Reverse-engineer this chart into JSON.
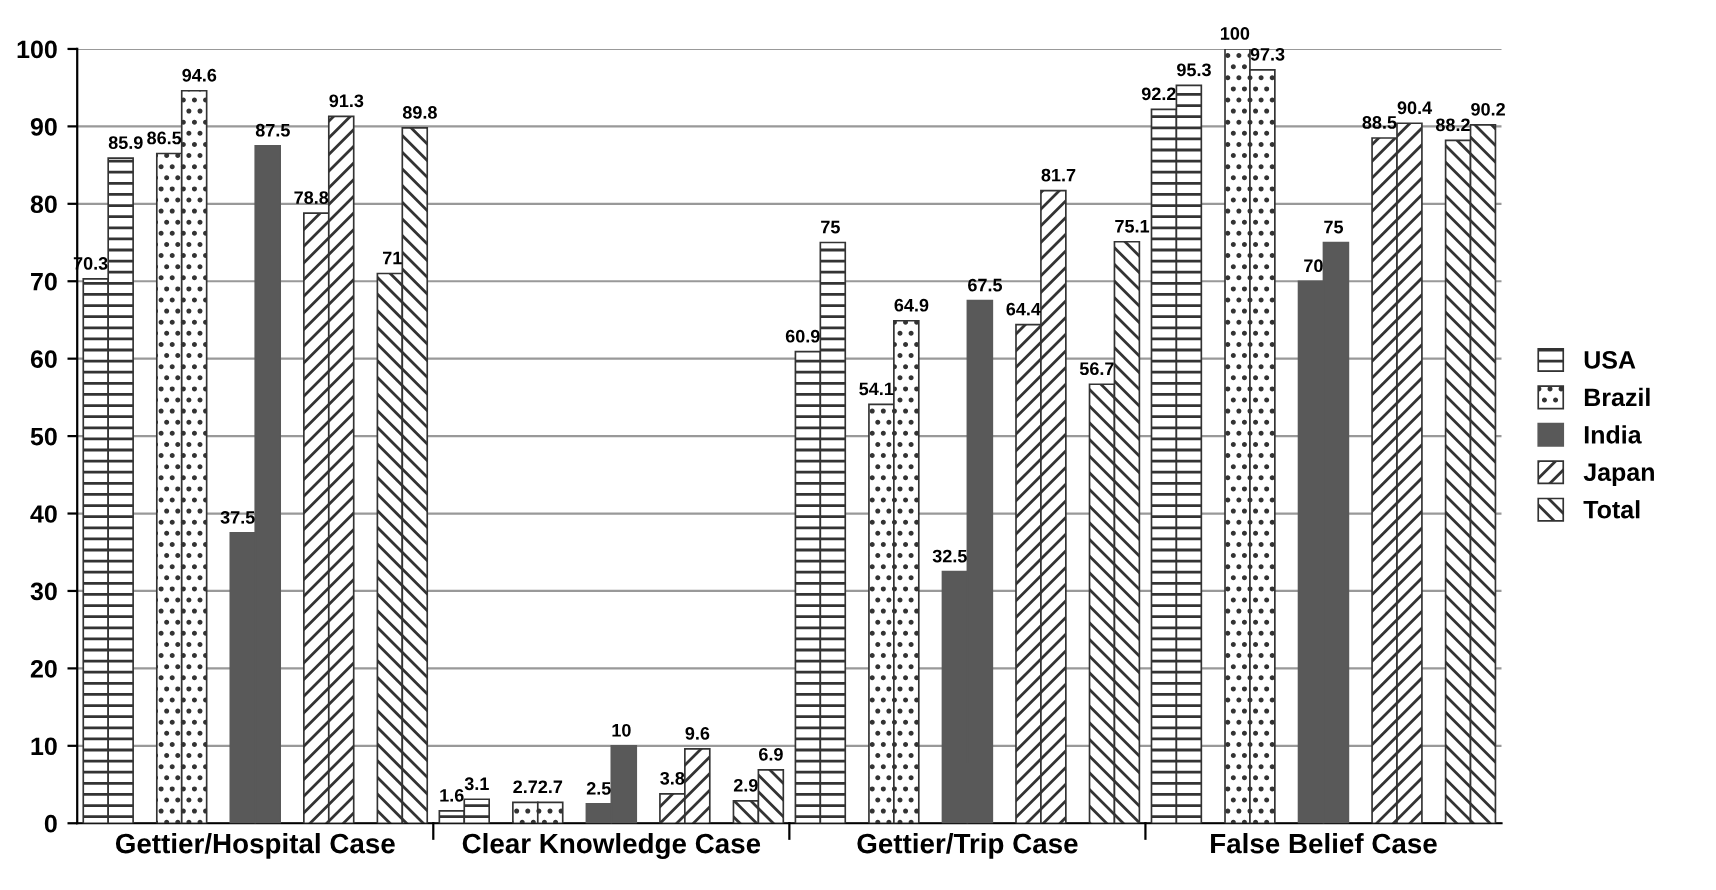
{
  "chart_data": {
    "type": "bar",
    "categories": [
      "Gettier/Hospital Case",
      "Clear Knowledge Case",
      "Gettier/Trip Case",
      "False Belief Case"
    ],
    "series": [
      {
        "name": "USA",
        "color": "#333333",
        "values": [
          70.3,
          1.6,
          60.9,
          92.2
        ]
      },
      {
        "color": "#333333",
        "values": [
          85.9,
          3.1,
          75,
          95.3
        ]
      },
      {
        "name": "Brazil",
        "color": "#333333",
        "values": [
          86.5,
          2.7,
          54.1,
          100
        ]
      },
      {
        "color": "#333333",
        "values": [
          94.6,
          2.7,
          64.9,
          97.3
        ]
      },
      {
        "name": "India",
        "color": "#595959",
        "values": [
          37.5,
          2.5,
          32.5,
          70
        ]
      },
      {
        "color": "#595959",
        "values": [
          87.5,
          10,
          67.5,
          75
        ]
      },
      {
        "name": "Japan",
        "color": "#333333",
        "values": [
          78.8,
          3.8,
          64.4,
          88.5
        ]
      },
      {
        "color": "#333333",
        "values": [
          91.3,
          9.6,
          81.7,
          90.4
        ]
      },
      {
        "name": "Total",
        "color": "#333333",
        "values": [
          71,
          2.9,
          56.7,
          88.2
        ]
      },
      {
        "color": "#333333",
        "values": [
          89.8,
          6.9,
          75.1,
          90.2
        ]
      }
    ],
    "ylim": [
      0,
      100
    ],
    "yticks": [
      0,
      10,
      20,
      30,
      40,
      50,
      60,
      70,
      80,
      90,
      100
    ],
    "grid": "y",
    "legend": "right",
    "data_labels": true
  }
}
